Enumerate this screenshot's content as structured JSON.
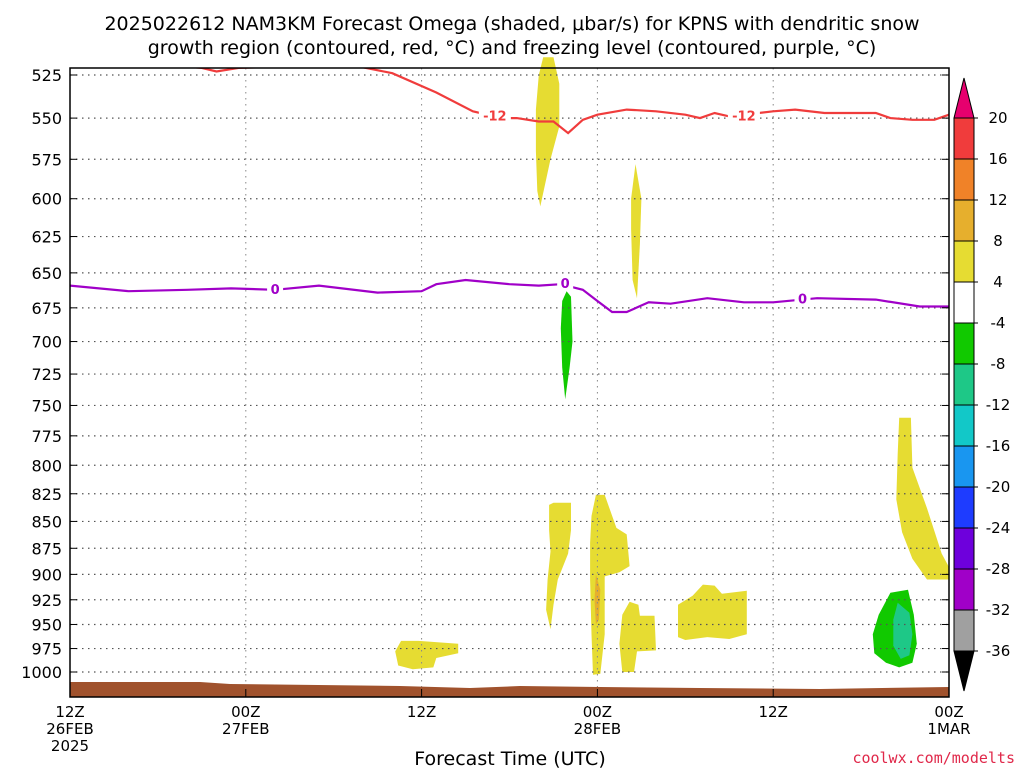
{
  "chart_data": {
    "type": "heatmap",
    "title_line1": "2025022612 NAM3KM Forecast Omega (shaded, μbar/s) for KPNS with dendritic snow",
    "title_line2": "growth region (contoured, red, °C) and freezing level (contoured, purple, °C)",
    "xlabel": "Forecast Time (UTC)",
    "ylabel": "",
    "credit": "coolwx.com/modelts",
    "y_axis": {
      "scale": "pressure (hPa), inverted",
      "ylim": [
        1010,
        520
      ],
      "ticks": [
        525,
        550,
        575,
        600,
        625,
        650,
        675,
        700,
        725,
        750,
        775,
        800,
        825,
        850,
        875,
        900,
        925,
        950,
        975,
        1000
      ]
    },
    "x_axis": {
      "range_hours": [
        0,
        60
      ],
      "ticks": [
        {
          "hour": 0,
          "lines": [
            "12Z",
            "26FEB",
            "2025"
          ]
        },
        {
          "hour": 12,
          "lines": [
            "00Z",
            "27FEB"
          ]
        },
        {
          "hour": 24,
          "lines": [
            "12Z"
          ]
        },
        {
          "hour": 36,
          "lines": [
            "00Z",
            "28FEB"
          ]
        },
        {
          "hour": 48,
          "lines": [
            "12Z"
          ]
        },
        {
          "hour": 60,
          "lines": [
            "00Z",
            "1MAR"
          ]
        }
      ]
    },
    "grid": true,
    "colorbar": {
      "position": "right",
      "levels": [
        20,
        16,
        12,
        8,
        4,
        -4,
        -8,
        -12,
        -16,
        -20,
        -24,
        -28,
        -32,
        -36
      ],
      "colors": [
        "#f03c3c",
        "#f08228",
        "#e6af2d",
        "#e6dc32",
        "#ffffff",
        "#11c900",
        "#1ec887",
        "#12c8c8",
        "#1996f0",
        "#1e3cff",
        "#6e00dc",
        "#a000c8",
        "#a0a0a0"
      ],
      "top_arrow_color": "#e6006e",
      "bottom_arrow_color": "#000000"
    },
    "series": [
      {
        "name": "dendritic snow growth region",
        "color": "#f03c3c",
        "contour_value": "-12",
        "labels": [
          {
            "hour": 29.0,
            "p": 549
          },
          {
            "hour": 46.0,
            "p": 549
          }
        ],
        "points": [
          [
            2.0,
            519
          ],
          [
            3.0,
            517
          ],
          [
            9.0,
            521
          ],
          [
            10.0,
            523
          ],
          [
            11.5,
            521
          ],
          [
            19.0,
            519
          ],
          [
            22.0,
            524
          ],
          [
            25.0,
            535
          ],
          [
            27.5,
            546
          ],
          [
            29.5,
            550
          ],
          [
            30.5,
            550
          ],
          [
            32.0,
            552
          ],
          [
            33.0,
            552
          ],
          [
            34.0,
            559
          ],
          [
            35.0,
            551
          ],
          [
            36.0,
            548
          ],
          [
            38.0,
            545
          ],
          [
            40.0,
            546
          ],
          [
            42.0,
            548
          ],
          [
            43.0,
            550
          ],
          [
            44.0,
            547
          ],
          [
            45.0,
            549
          ],
          [
            46.0,
            548
          ],
          [
            48.0,
            546
          ],
          [
            49.5,
            545
          ],
          [
            51.5,
            547
          ],
          [
            53.0,
            547
          ],
          [
            55.0,
            547
          ],
          [
            56.0,
            550
          ],
          [
            57.5,
            551
          ],
          [
            59.0,
            551
          ],
          [
            60.0,
            548
          ]
        ]
      },
      {
        "name": "freezing level",
        "color": "#a000c8",
        "contour_value": "0",
        "labels": [
          {
            "hour": 14.0,
            "p": 662
          },
          {
            "hour": 33.8,
            "p": 658
          },
          {
            "hour": 50.0,
            "p": 669
          }
        ],
        "points": [
          [
            0,
            659
          ],
          [
            4.0,
            663
          ],
          [
            8.0,
            662
          ],
          [
            11.0,
            661
          ],
          [
            14.0,
            662
          ],
          [
            17.0,
            659
          ],
          [
            21.0,
            664
          ],
          [
            24.0,
            663
          ],
          [
            25.0,
            658
          ],
          [
            27.0,
            655
          ],
          [
            30.0,
            658
          ],
          [
            32.0,
            659
          ],
          [
            33.5,
            658
          ],
          [
            35.0,
            662
          ],
          [
            36.0,
            670
          ],
          [
            37.0,
            678
          ],
          [
            38.0,
            678
          ],
          [
            39.5,
            671
          ],
          [
            41.0,
            672
          ],
          [
            43.5,
            668
          ],
          [
            46.0,
            671
          ],
          [
            48.0,
            671
          ],
          [
            51.0,
            668
          ],
          [
            55.0,
            669
          ],
          [
            58.0,
            674
          ],
          [
            60.0,
            674
          ]
        ]
      }
    ],
    "shaded_regions": [
      {
        "level": 4,
        "color": "#e6dc32",
        "polygon": [
          [
            32.3,
            515
          ],
          [
            33.0,
            515
          ],
          [
            33.4,
            530
          ],
          [
            33.4,
            555
          ],
          [
            32.8,
            575
          ],
          [
            32.1,
            605
          ],
          [
            31.9,
            595
          ],
          [
            31.8,
            570
          ],
          [
            31.8,
            545
          ],
          [
            32.0,
            525
          ]
        ]
      },
      {
        "level": 4,
        "color": "#e6dc32",
        "polygon": [
          [
            38.6,
            578
          ],
          [
            39.0,
            600
          ],
          [
            38.9,
            630
          ],
          [
            38.7,
            668
          ],
          [
            38.4,
            655
          ],
          [
            38.3,
            620
          ],
          [
            38.3,
            600
          ]
        ]
      },
      {
        "level": -4,
        "color": "#11c900",
        "polygon": [
          [
            33.9,
            663
          ],
          [
            34.2,
            667
          ],
          [
            34.3,
            700
          ],
          [
            34.1,
            720
          ],
          [
            33.8,
            745
          ],
          [
            33.6,
            720
          ],
          [
            33.5,
            690
          ],
          [
            33.6,
            670
          ]
        ]
      },
      {
        "level": 4,
        "color": "#e6dc32",
        "polygon": [
          [
            33.0,
            833
          ],
          [
            34.2,
            833
          ],
          [
            34.2,
            858
          ],
          [
            34.0,
            880
          ],
          [
            33.3,
            905
          ],
          [
            33.0,
            930
          ],
          [
            32.8,
            955
          ],
          [
            32.5,
            935
          ],
          [
            32.6,
            905
          ],
          [
            32.8,
            878
          ],
          [
            32.7,
            858
          ],
          [
            32.7,
            835
          ]
        ]
      },
      {
        "level": 4,
        "color": "#e6dc32",
        "polygon": [
          [
            35.9,
            826
          ],
          [
            36.5,
            826
          ],
          [
            37.3,
            856
          ],
          [
            38.0,
            862
          ],
          [
            38.2,
            892
          ],
          [
            37.5,
            898
          ],
          [
            36.5,
            902
          ],
          [
            36.5,
            960
          ],
          [
            36.2,
            1002
          ],
          [
            35.7,
            1003
          ],
          [
            35.6,
            960
          ],
          [
            35.5,
            905
          ],
          [
            35.5,
            870
          ],
          [
            35.6,
            845
          ]
        ]
      },
      {
        "level": 8,
        "color": "#e6af2d",
        "polygon": [
          [
            35.9,
            900
          ],
          [
            36.2,
            915
          ],
          [
            36.1,
            945
          ],
          [
            35.9,
            950
          ],
          [
            35.8,
            925
          ]
        ]
      },
      {
        "level": 4,
        "color": "#e6dc32",
        "polygon": [
          [
            38.9,
            941
          ],
          [
            39.9,
            941
          ],
          [
            40.0,
            977
          ],
          [
            38.7,
            978
          ],
          [
            38.5,
            1000
          ],
          [
            37.7,
            1000
          ],
          [
            37.5,
            970
          ],
          [
            37.7,
            940
          ],
          [
            38.2,
            927
          ],
          [
            38.8,
            930
          ]
        ]
      },
      {
        "level": 4,
        "color": "#e6dc32",
        "polygon": [
          [
            42.5,
            921
          ],
          [
            43.2,
            910
          ],
          [
            44.0,
            911
          ],
          [
            44.5,
            919
          ],
          [
            46.2,
            916
          ],
          [
            46.2,
            960
          ],
          [
            45.0,
            965
          ],
          [
            43.5,
            963
          ],
          [
            42.0,
            966
          ],
          [
            41.5,
            963
          ],
          [
            41.5,
            930
          ]
        ]
      },
      {
        "level": 4,
        "color": "#e6dc32",
        "polygon": [
          [
            22.6,
            967
          ],
          [
            23.8,
            967
          ],
          [
            26.5,
            970
          ],
          [
            26.5,
            980
          ],
          [
            25.0,
            985
          ],
          [
            24.8,
            995
          ],
          [
            23.4,
            997
          ],
          [
            22.4,
            993
          ],
          [
            22.2,
            978
          ]
        ]
      },
      {
        "level": 4,
        "color": "#e6dc32",
        "polygon": [
          [
            56.6,
            760
          ],
          [
            57.4,
            760
          ],
          [
            57.5,
            802
          ],
          [
            58.5,
            838
          ],
          [
            59.5,
            880
          ],
          [
            60.0,
            893
          ],
          [
            60.0,
            905
          ],
          [
            58.5,
            905
          ],
          [
            57.5,
            885
          ],
          [
            56.8,
            860
          ],
          [
            56.4,
            830
          ],
          [
            56.5,
            790
          ]
        ]
      },
      {
        "level": -4,
        "color": "#11c900",
        "polygon": [
          [
            56.0,
            918
          ],
          [
            57.2,
            915
          ],
          [
            57.6,
            940
          ],
          [
            57.8,
            970
          ],
          [
            57.5,
            990
          ],
          [
            56.6,
            995
          ],
          [
            55.7,
            990
          ],
          [
            54.9,
            980
          ],
          [
            54.8,
            960
          ],
          [
            55.2,
            940
          ]
        ]
      },
      {
        "level": -8,
        "color": "#1ec887",
        "polygon": [
          [
            56.5,
            928
          ],
          [
            57.3,
            938
          ],
          [
            57.5,
            960
          ],
          [
            57.3,
            982
          ],
          [
            56.7,
            986
          ],
          [
            56.2,
            972
          ],
          [
            56.2,
            945
          ]
        ]
      }
    ]
  }
}
